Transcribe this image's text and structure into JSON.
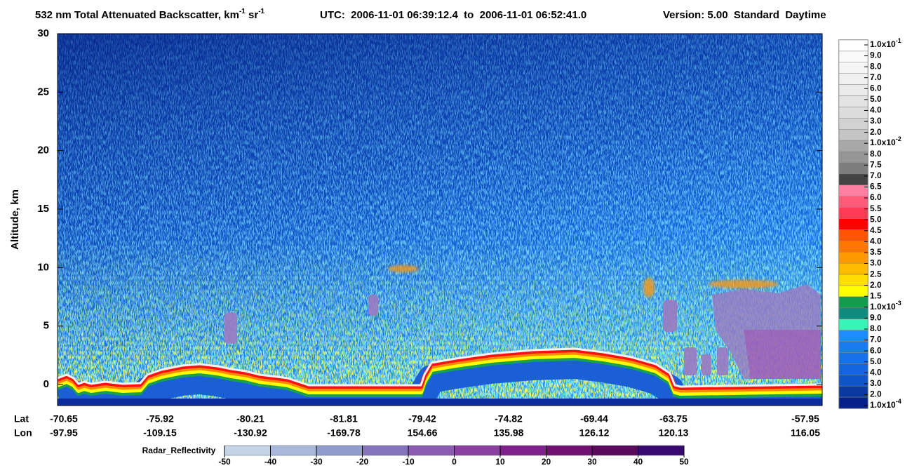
{
  "chart_data": {
    "type": "curtain",
    "title": {
      "text": "532 nm Total Attenuated Backscatter, km",
      "sup1": "-1",
      "mid": " sr",
      "sup2": "-1"
    },
    "utc": "UTC:  2006-11-01 06:39:12.4  to  2006-11-01 06:52:41.0",
    "version": "Version: 5.00  Standard  Daytime",
    "y_label": "Altitude, km",
    "ylim": [
      -1.8,
      30
    ],
    "yticks": [
      0,
      5,
      10,
      15,
      20,
      25,
      30
    ],
    "lat_label": "Lat",
    "lon_label": "Lon",
    "lat": [
      -70.65,
      -75.92,
      -80.21,
      -81.81,
      -79.42,
      -74.82,
      -69.44,
      -63.75,
      -57.95
    ],
    "lon": [
      -97.95,
      -109.15,
      -130.92,
      -169.78,
      154.66,
      135.98,
      126.12,
      120.13,
      116.05
    ],
    "colorbar": {
      "labels": [
        {
          "text": "1.0x10",
          "sup": "-1"
        },
        "9.0",
        "8.0",
        "7.0",
        "6.0",
        "5.0",
        "4.0",
        "3.0",
        "2.0",
        {
          "text": "1.0x10",
          "sup": "-2"
        },
        "8.0",
        "7.5",
        "7.0",
        "6.5",
        "6.0",
        "5.5",
        "5.0",
        "4.5",
        "4.0",
        "3.5",
        "3.0",
        "2.5",
        "2.0",
        "1.5",
        {
          "text": "1.0x10",
          "sup": "-3"
        },
        "9.0",
        "8.0",
        "7.0",
        "6.0",
        "5.0",
        "4.0",
        "3.0",
        "2.0",
        {
          "text": "1.0x10",
          "sup": "-4"
        }
      ],
      "colors": [
        "#ffffff",
        "#fafafa",
        "#f5f5f5",
        "#f0f0f0",
        "#ebebeb",
        "#e3e3e3",
        "#dcdcdc",
        "#d2d2d2",
        "#c4c4c4",
        "#a8a8a8",
        "#969696",
        "#7d7d7d",
        "#444444",
        "#ff7fa0",
        "#ff5c7a",
        "#ff3a55",
        "#ff0000",
        "#ff5500",
        "#ff7700",
        "#ff9900",
        "#ffbb00",
        "#ffdd00",
        "#ffff00",
        "#129a4e",
        "#0f8a7c",
        "#33f5b5",
        "#1e8cff",
        "#1a7af0",
        "#1670e8",
        "#1466e0",
        "#0e55cc",
        "#0a3aa0",
        "#06228a"
      ]
    },
    "radar": {
      "label": "Radar_Reflectivity",
      "ticks": [
        -50,
        -40,
        -30,
        -20,
        -10,
        0,
        10,
        20,
        30,
        40,
        50
      ],
      "colors": [
        "#c4d3e6",
        "#a8b8da",
        "#8f9ccc",
        "#8474bc",
        "#8a5db0",
        "#8a40a0",
        "#80208a",
        "#701070",
        "#5a0a5a",
        "#380a70"
      ]
    }
  }
}
